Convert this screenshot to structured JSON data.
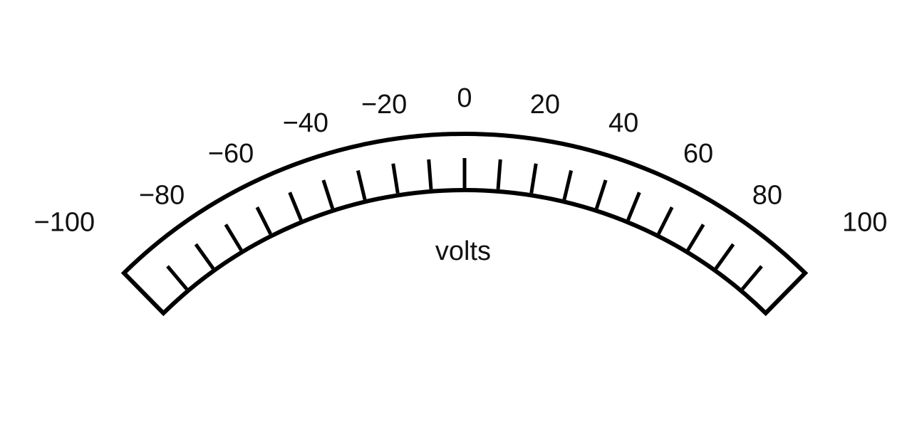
{
  "meter": {
    "unit": "volts",
    "scale_min": -100,
    "scale_max": 100,
    "label_values": [
      -100,
      -80,
      -60,
      -40,
      -20,
      0,
      20,
      40,
      60,
      80,
      100
    ],
    "labels": [
      "−100",
      "−80",
      "−60",
      "−40",
      "−20",
      "0",
      "20",
      "40",
      "60",
      "80",
      "100"
    ],
    "minor_tick_step": 10,
    "tick_color": "#000000",
    "label_color": "#111111"
  }
}
